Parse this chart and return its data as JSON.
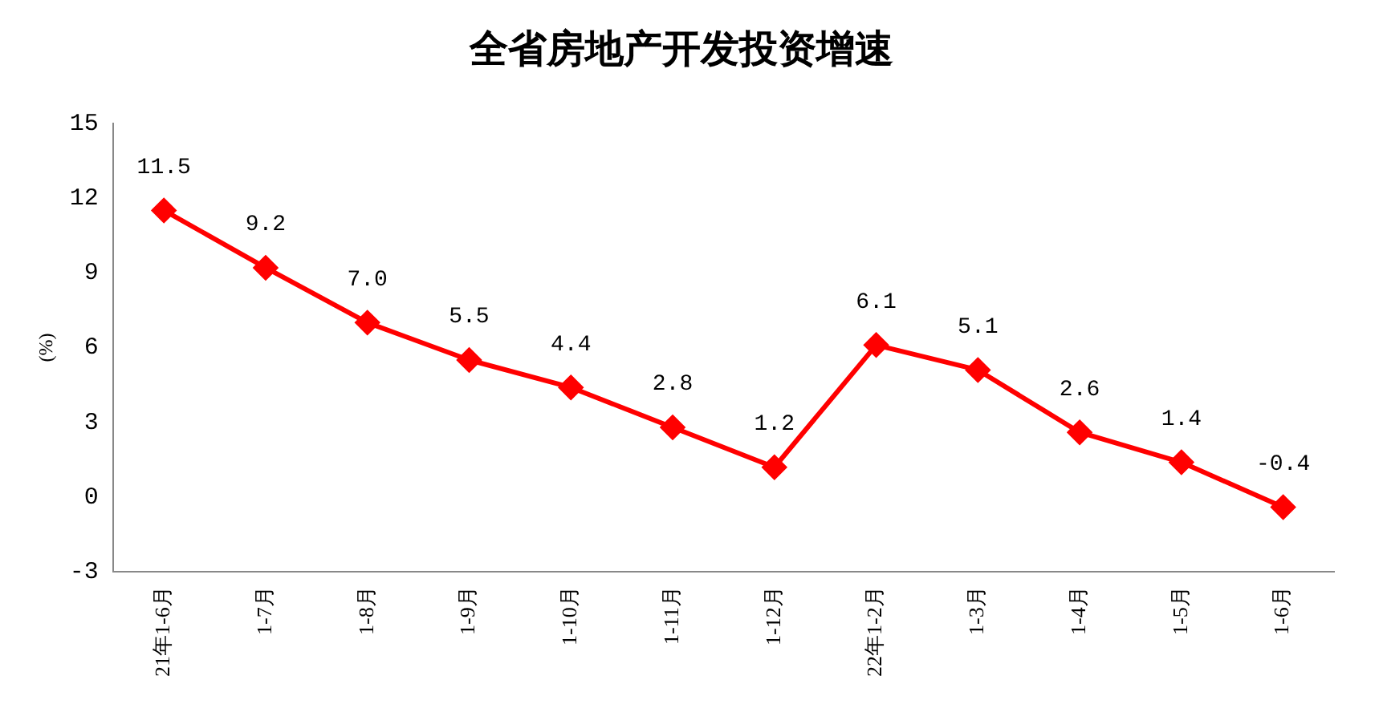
{
  "chart_data": {
    "type": "line",
    "title": "全省房地产开发投资增速",
    "ylabel": "(%)",
    "categories": [
      "21年1-6月",
      "1-7月",
      "1-8月",
      "1-9月",
      "1-10月",
      "1-11月",
      "1-12月",
      "22年1-2月",
      "1-3月",
      "1-4月",
      "1-5月",
      "1-6月"
    ],
    "series": [
      {
        "color": "#ff0000",
        "values": [
          11.5,
          9.2,
          7.0,
          5.5,
          4.4,
          2.8,
          1.2,
          6.1,
          5.1,
          2.6,
          1.4,
          -0.4
        ],
        "value_labels": [
          "11.5",
          "9.2",
          "7.0",
          "5.5",
          "4.4",
          "2.8",
          "1.2",
          "6.1",
          "5.1",
          "2.6",
          "1.4",
          "-0.4"
        ]
      }
    ],
    "ylim": [
      -3,
      15
    ],
    "yticks": [
      -3,
      0,
      3,
      6,
      9,
      12,
      15
    ],
    "grid": false,
    "legend": false,
    "marker": "diamond",
    "line_style": "solid"
  }
}
